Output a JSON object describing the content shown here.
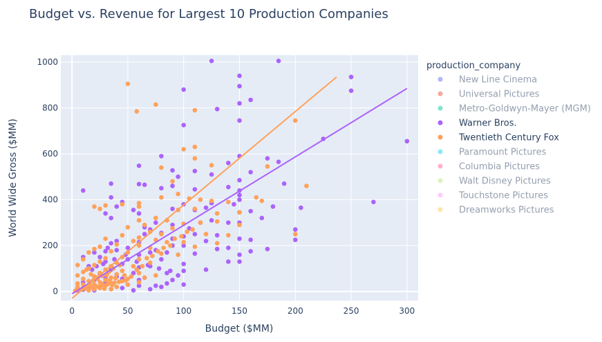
{
  "chart_data": {
    "type": "scatter",
    "title": "Budget vs. Revenue for Largest 10 Production Companies",
    "xlabel": "Budget ($MM)",
    "ylabel": "World Wide Gross ($MM)",
    "xlim": [
      -10,
      310
    ],
    "ylim": [
      -40,
      1030
    ],
    "xticks": [
      0,
      50,
      100,
      150,
      200,
      250,
      300
    ],
    "yticks": [
      0,
      200,
      400,
      600,
      800,
      1000
    ],
    "grid": true,
    "legend": {
      "title": "production_company",
      "placement": "right",
      "entries": [
        {
          "name": "New Line Cinema",
          "color": "#636efa",
          "active": false
        },
        {
          "name": "Universal Pictures",
          "color": "#ef553b",
          "active": false
        },
        {
          "name": "Metro-Goldwyn-Mayer (MGM)",
          "color": "#00cc96",
          "active": false
        },
        {
          "name": "Warner Bros.",
          "color": "#ab63fa",
          "active": true
        },
        {
          "name": "Twentieth Century Fox",
          "color": "#ffa15a",
          "active": true
        },
        {
          "name": "Paramount Pictures",
          "color": "#19d3f3",
          "active": false
        },
        {
          "name": "Columbia Pictures",
          "color": "#ff6692",
          "active": false
        },
        {
          "name": "Walt Disney Pictures",
          "color": "#b6e880",
          "active": false
        },
        {
          "name": "Touchstone Pictures",
          "color": "#ff97ff",
          "active": false
        },
        {
          "name": "Dreamworks Pictures",
          "color": "#fecb52",
          "active": false
        }
      ]
    },
    "series": [
      {
        "name": "Warner Bros.",
        "color": "#ab63fa",
        "trendline": {
          "x": [
            0,
            300
          ],
          "y": [
            -10,
            885
          ]
        },
        "points": [
          [
            125,
            1005
          ],
          [
            185,
            1005
          ],
          [
            150,
            940
          ],
          [
            250,
            935
          ],
          [
            150,
            895
          ],
          [
            100,
            880
          ],
          [
            250,
            875
          ],
          [
            160,
            835
          ],
          [
            130,
            795
          ],
          [
            150,
            820
          ],
          [
            100,
            725
          ],
          [
            150,
            745
          ],
          [
            225,
            665
          ],
          [
            300,
            655
          ],
          [
            80,
            590
          ],
          [
            150,
            590
          ],
          [
            175,
            580
          ],
          [
            185,
            565
          ],
          [
            140,
            560
          ],
          [
            60,
            548
          ],
          [
            90,
            528
          ],
          [
            110,
            525
          ],
          [
            160,
            520
          ],
          [
            125,
            510
          ],
          [
            95,
            500
          ],
          [
            150,
            485
          ],
          [
            190,
            470
          ],
          [
            90,
            460
          ],
          [
            35,
            470
          ],
          [
            60,
            468
          ],
          [
            65,
            465
          ],
          [
            140,
            455
          ],
          [
            110,
            445
          ],
          [
            10,
            440
          ],
          [
            150,
            440
          ],
          [
            80,
            450
          ],
          [
            150,
            420
          ],
          [
            270,
            390
          ],
          [
            205,
            365
          ],
          [
            145,
            380
          ],
          [
            180,
            370
          ],
          [
            100,
            380
          ],
          [
            125,
            385
          ],
          [
            120,
            365
          ],
          [
            35,
            410
          ],
          [
            45,
            390
          ],
          [
            40,
            370
          ],
          [
            90,
            360
          ],
          [
            55,
            355
          ],
          [
            150,
            400
          ],
          [
            110,
            355
          ],
          [
            30,
            340
          ],
          [
            60,
            340
          ],
          [
            150,
            345
          ],
          [
            160,
            350
          ],
          [
            125,
            310
          ],
          [
            170,
            320
          ],
          [
            75,
            300
          ],
          [
            140,
            300
          ],
          [
            65,
            280
          ],
          [
            90,
            290
          ],
          [
            35,
            320
          ],
          [
            150,
            300
          ],
          [
            115,
            300
          ],
          [
            105,
            275
          ],
          [
            200,
            270
          ],
          [
            70,
            270
          ],
          [
            80,
            255
          ],
          [
            100,
            240
          ],
          [
            110,
            250
          ],
          [
            130,
            245
          ],
          [
            65,
            250
          ],
          [
            90,
            230
          ],
          [
            150,
            230
          ],
          [
            160,
            225
          ],
          [
            200,
            225
          ],
          [
            140,
            190
          ],
          [
            40,
            220
          ],
          [
            35,
            210
          ],
          [
            60,
            215
          ],
          [
            90,
            200
          ],
          [
            100,
            200
          ],
          [
            50,
            190
          ],
          [
            120,
            220
          ],
          [
            130,
            185
          ],
          [
            175,
            185
          ],
          [
            75,
            180
          ],
          [
            150,
            160
          ],
          [
            110,
            165
          ],
          [
            160,
            175
          ],
          [
            70,
            170
          ],
          [
            85,
            170
          ],
          [
            40,
            180
          ],
          [
            30,
            175
          ],
          [
            20,
            170
          ],
          [
            60,
            160
          ],
          [
            10,
            150
          ],
          [
            25,
            150
          ],
          [
            50,
            140
          ],
          [
            80,
            140
          ],
          [
            100,
            120
          ],
          [
            140,
            130
          ],
          [
            150,
            130
          ],
          [
            120,
            95
          ],
          [
            100,
            90
          ],
          [
            70,
            110
          ],
          [
            30,
            130
          ],
          [
            45,
            120
          ],
          [
            60,
            105
          ],
          [
            15,
            110
          ],
          [
            35,
            95
          ],
          [
            55,
            80
          ],
          [
            85,
            80
          ],
          [
            25,
            75
          ],
          [
            40,
            65
          ],
          [
            65,
            60
          ],
          [
            95,
            70
          ],
          [
            20,
            50
          ],
          [
            10,
            40
          ],
          [
            30,
            40
          ],
          [
            50,
            30
          ],
          [
            75,
            25
          ],
          [
            5,
            20
          ],
          [
            15,
            15
          ],
          [
            25,
            20
          ],
          [
            45,
            15
          ],
          [
            60,
            25
          ],
          [
            80,
            20
          ],
          [
            90,
            50
          ],
          [
            100,
            30
          ],
          [
            5,
            5
          ],
          [
            10,
            8
          ],
          [
            20,
            5
          ],
          [
            35,
            10
          ],
          [
            55,
            5
          ],
          [
            70,
            10
          ],
          [
            85,
            35
          ],
          [
            30,
            60
          ],
          [
            45,
            55
          ],
          [
            60,
            50
          ],
          [
            18,
            95
          ],
          [
            22,
            110
          ],
          [
            28,
            120
          ],
          [
            38,
            140
          ],
          [
            48,
            160
          ],
          [
            58,
            130
          ],
          [
            68,
            115
          ],
          [
            78,
            100
          ],
          [
            88,
            90
          ],
          [
            32,
            190
          ]
        ]
      },
      {
        "name": "Twentieth Century Fox",
        "color": "#ffa15a",
        "trendline": {
          "x": [
            0,
            237
          ],
          "y": [
            -30,
            935
          ]
        },
        "points": [
          [
            50,
            905
          ],
          [
            75,
            815
          ],
          [
            58,
            785
          ],
          [
            110,
            790
          ],
          [
            200,
            745
          ],
          [
            110,
            630
          ],
          [
            100,
            620
          ],
          [
            110,
            580
          ],
          [
            125,
            550
          ],
          [
            175,
            545
          ],
          [
            80,
            540
          ],
          [
            90,
            480
          ],
          [
            210,
            460
          ],
          [
            95,
            425
          ],
          [
            165,
            410
          ],
          [
            80,
            410
          ],
          [
            105,
            405
          ],
          [
            125,
            395
          ],
          [
            170,
            395
          ],
          [
            60,
            385
          ],
          [
            140,
            390
          ],
          [
            115,
            400
          ],
          [
            30,
            375
          ],
          [
            45,
            380
          ],
          [
            20,
            370
          ],
          [
            60,
            370
          ],
          [
            110,
            360
          ],
          [
            95,
            355
          ],
          [
            25,
            360
          ],
          [
            130,
            340
          ],
          [
            150,
            345
          ],
          [
            75,
            320
          ],
          [
            85,
            310
          ],
          [
            60,
            310
          ],
          [
            115,
            300
          ],
          [
            130,
            305
          ],
          [
            100,
            295
          ],
          [
            150,
            290
          ],
          [
            65,
            290
          ],
          [
            50,
            280
          ],
          [
            90,
            275
          ],
          [
            70,
            260
          ],
          [
            80,
            250
          ],
          [
            140,
            245
          ],
          [
            120,
            250
          ],
          [
            45,
            245
          ],
          [
            60,
            235
          ],
          [
            30,
            230
          ],
          [
            75,
            225
          ],
          [
            55,
            220
          ],
          [
            200,
            250
          ],
          [
            85,
            215
          ],
          [
            100,
            215
          ],
          [
            130,
            210
          ],
          [
            40,
            205
          ],
          [
            25,
            195
          ],
          [
            60,
            200
          ],
          [
            110,
            195
          ],
          [
            20,
            185
          ],
          [
            70,
            190
          ],
          [
            35,
            175
          ],
          [
            15,
            170
          ],
          [
            50,
            170
          ],
          [
            80,
            165
          ],
          [
            95,
            160
          ],
          [
            45,
            150
          ],
          [
            30,
            145
          ],
          [
            10,
            140
          ],
          [
            60,
            140
          ],
          [
            25,
            130
          ],
          [
            40,
            125
          ],
          [
            70,
            125
          ],
          [
            20,
            115
          ],
          [
            5,
            115
          ],
          [
            35,
            110
          ],
          [
            55,
            110
          ],
          [
            15,
            100
          ],
          [
            30,
            95
          ],
          [
            45,
            90
          ],
          [
            10,
            85
          ],
          [
            25,
            80
          ],
          [
            60,
            80
          ],
          [
            40,
            75
          ],
          [
            75,
            70
          ],
          [
            5,
            70
          ],
          [
            20,
            65
          ],
          [
            35,
            60
          ],
          [
            50,
            55
          ],
          [
            10,
            55
          ],
          [
            30,
            50
          ],
          [
            15,
            45
          ],
          [
            45,
            45
          ],
          [
            25,
            40
          ],
          [
            60,
            40
          ],
          [
            5,
            35
          ],
          [
            35,
            35
          ],
          [
            10,
            30
          ],
          [
            20,
            30
          ],
          [
            50,
            30
          ],
          [
            15,
            25
          ],
          [
            30,
            25
          ],
          [
            40,
            20
          ],
          [
            5,
            20
          ],
          [
            25,
            15
          ],
          [
            10,
            15
          ],
          [
            20,
            10
          ],
          [
            35,
            10
          ],
          [
            5,
            10
          ],
          [
            15,
            5
          ],
          [
            3,
            3
          ],
          [
            8,
            8
          ],
          [
            12,
            12
          ],
          [
            18,
            18
          ],
          [
            22,
            22
          ],
          [
            28,
            28
          ],
          [
            32,
            32
          ],
          [
            38,
            38
          ],
          [
            42,
            42
          ],
          [
            48,
            48
          ],
          [
            65,
            60
          ],
          [
            13,
            95
          ],
          [
            17,
            75
          ],
          [
            23,
            55
          ],
          [
            27,
            68
          ],
          [
            33,
            85
          ],
          [
            37,
            100
          ],
          [
            43,
            115
          ],
          [
            47,
            70
          ],
          [
            53,
            65
          ],
          [
            58,
            95
          ],
          [
            63,
            110
          ],
          [
            67,
            145
          ],
          [
            72,
            155
          ],
          [
            77,
            175
          ],
          [
            82,
            190
          ],
          [
            88,
            200
          ],
          [
            92,
            230
          ],
          [
            98,
            240
          ],
          [
            103,
            260
          ],
          [
            108,
            270
          ],
          [
            16,
            35
          ],
          [
            19,
            48
          ],
          [
            21,
            62
          ],
          [
            24,
            20
          ],
          [
            26,
            35
          ],
          [
            29,
            12
          ],
          [
            31,
            72
          ],
          [
            34,
            48
          ],
          [
            36,
            28
          ],
          [
            39,
            58
          ]
        ]
      }
    ]
  }
}
